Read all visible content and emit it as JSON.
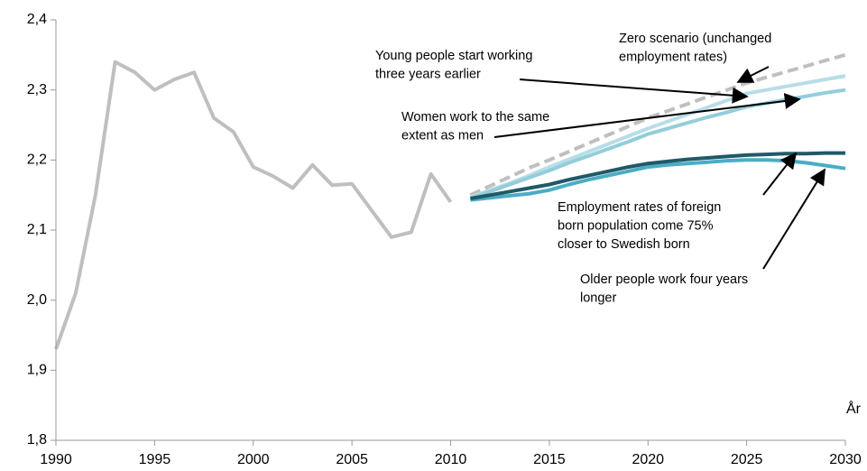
{
  "chart_data": {
    "type": "line",
    "x_label": "År",
    "x": [
      1990,
      1991,
      1992,
      1993,
      1994,
      1995,
      1996,
      1997,
      1998,
      1999,
      2000,
      2001,
      2002,
      2003,
      2004,
      2005,
      2006,
      2007,
      2008,
      2009,
      2010,
      2011,
      2012,
      2013,
      2014,
      2015,
      2016,
      2017,
      2018,
      2019,
      2020,
      2021,
      2022,
      2023,
      2024,
      2025,
      2026,
      2027,
      2028,
      2029,
      2030
    ],
    "xlim": [
      1990,
      2030
    ],
    "xticks": [
      1990,
      1995,
      2000,
      2005,
      2010,
      2015,
      2020,
      2025,
      2030
    ],
    "ylim": [
      1.8,
      2.4
    ],
    "yticks": [
      {
        "value": 1.8,
        "label": "1,8"
      },
      {
        "value": 1.9,
        "label": "1,9"
      },
      {
        "value": 2.0,
        "label": "2,0"
      },
      {
        "value": 2.1,
        "label": "2,1"
      },
      {
        "value": 2.2,
        "label": "2,2"
      },
      {
        "value": 2.3,
        "label": "2,3"
      },
      {
        "value": 2.4,
        "label": "2,4"
      }
    ],
    "series": [
      {
        "color": "#bfbfbf",
        "values": [
          1.93,
          2.01,
          2.15,
          2.34,
          2.325,
          2.3,
          2.315,
          2.325,
          2.26,
          2.24,
          2.19,
          2.177,
          2.16,
          2.193,
          2.164,
          2.166,
          2.128,
          2.09,
          2.097,
          2.18,
          2.14,
          null,
          null,
          null,
          null,
          null,
          null,
          null,
          null,
          null,
          null,
          null,
          null,
          null,
          null,
          null,
          null,
          null,
          null,
          null,
          null
        ]
      },
      {
        "color": "#bfbfbf",
        "dashed": true,
        "values": [
          null,
          null,
          null,
          null,
          null,
          null,
          null,
          null,
          null,
          null,
          null,
          null,
          null,
          null,
          null,
          null,
          null,
          null,
          null,
          null,
          null,
          2.15,
          2.163,
          2.176,
          2.189,
          2.2,
          2.212,
          2.224,
          2.236,
          2.248,
          2.26,
          2.27,
          2.28,
          2.29,
          2.3,
          2.31,
          2.318,
          2.326,
          2.334,
          2.342,
          2.35
        ]
      },
      {
        "color": "#b7dde8",
        "values": [
          null,
          null,
          null,
          null,
          null,
          null,
          null,
          null,
          null,
          null,
          null,
          null,
          null,
          null,
          null,
          null,
          null,
          null,
          null,
          null,
          null,
          2.147,
          2.157,
          2.167,
          2.178,
          2.19,
          2.201,
          2.212,
          2.223,
          2.234,
          2.245,
          2.255,
          2.265,
          2.275,
          2.285,
          2.295,
          2.3,
          2.305,
          2.31,
          2.315,
          2.32
        ]
      },
      {
        "color": "#93cddb",
        "values": [
          null,
          null,
          null,
          null,
          null,
          null,
          null,
          null,
          null,
          null,
          null,
          null,
          null,
          null,
          null,
          null,
          null,
          null,
          null,
          null,
          null,
          2.145,
          2.155,
          2.165,
          2.175,
          2.185,
          2.196,
          2.206,
          2.216,
          2.226,
          2.237,
          2.245,
          2.253,
          2.261,
          2.268,
          2.276,
          2.281,
          2.286,
          2.291,
          2.296,
          2.3
        ]
      },
      {
        "color": "#4bacc6",
        "values": [
          null,
          null,
          null,
          null,
          null,
          null,
          null,
          null,
          null,
          null,
          null,
          null,
          null,
          null,
          null,
          null,
          null,
          null,
          null,
          null,
          null,
          2.143,
          2.146,
          2.149,
          2.152,
          2.157,
          2.165,
          2.172,
          2.178,
          2.184,
          2.19,
          2.193,
          2.195,
          2.197,
          2.199,
          2.2,
          2.2,
          2.199,
          2.196,
          2.192,
          2.188
        ]
      },
      {
        "color": "#215968",
        "values": [
          null,
          null,
          null,
          null,
          null,
          null,
          null,
          null,
          null,
          null,
          null,
          null,
          null,
          null,
          null,
          null,
          null,
          null,
          null,
          null,
          null,
          2.145,
          2.15,
          2.155,
          2.16,
          2.165,
          2.172,
          2.178,
          2.184,
          2.19,
          2.195,
          2.198,
          2.201,
          2.203,
          2.205,
          2.207,
          2.208,
          2.209,
          2.209,
          2.21,
          2.21
        ]
      }
    ],
    "annotations": [
      {
        "lines": [
          "Zero scenario (unchanged",
          "employment rates)"
        ]
      },
      {
        "lines": [
          "Young people start working",
          "three years earlier"
        ]
      },
      {
        "lines": [
          "Women work to the same",
          "extent as men"
        ]
      },
      {
        "lines": [
          "Employment rates of foreign",
          "born population come 75%",
          "closer to Swedish born"
        ]
      },
      {
        "lines": [
          "Older people work four years",
          "longer"
        ]
      }
    ]
  }
}
